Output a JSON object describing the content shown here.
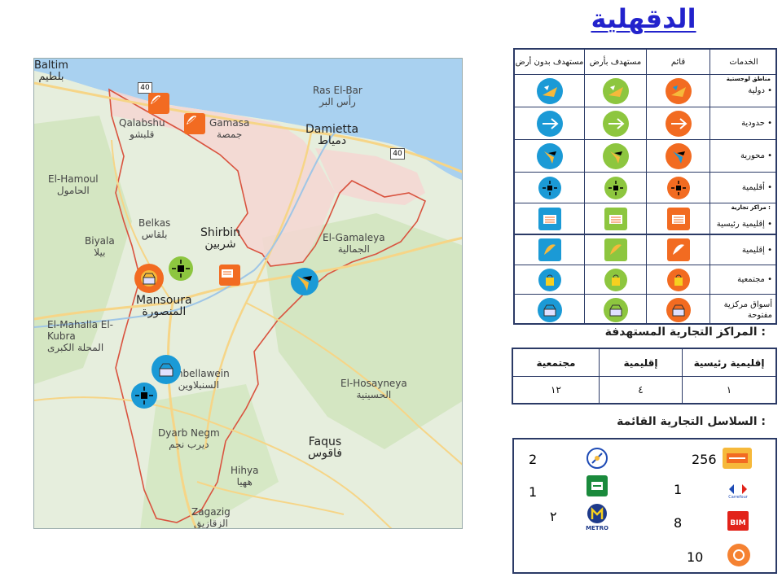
{
  "title": "الدقهلية",
  "map": {
    "labels": [
      {
        "en": "Baltim",
        "ar": "بلطيم"
      },
      {
        "en": "Ras El-Bar",
        "ar": "رأس البر"
      },
      {
        "en": "Qalabshu",
        "ar": "قلبشو"
      },
      {
        "en": "Gamasa",
        "ar": "جمصة"
      },
      {
        "en": "Damietta",
        "ar": "دمياط"
      },
      {
        "en": "El-Hamoul",
        "ar": "الحامول"
      },
      {
        "en": "Belkas",
        "ar": "بلقاس"
      },
      {
        "en": "Shirbin",
        "ar": "شربين"
      },
      {
        "en": "Biyala",
        "ar": "بيلا"
      },
      {
        "en": "El-Gamaleya",
        "ar": "الجمالية"
      },
      {
        "en": "Mansoura",
        "ar": "المنصورة"
      },
      {
        "en": "El-Mahalla El-Kubra",
        "ar": "المحلة الكبرى"
      },
      {
        "en": "Sinbellawein",
        "ar": "السنبلاوين"
      },
      {
        "en": "El-Hosayneya",
        "ar": "الحسينية"
      },
      {
        "en": "Dyarb Negm",
        "ar": "ديرب نجم"
      },
      {
        "en": "Faqus",
        "ar": "فاقوس"
      },
      {
        "en": "Hihya",
        "ar": "ههيا"
      },
      {
        "en": "Zagazig",
        "ar": "الزقازيق"
      }
    ],
    "road_shields": [
      "40",
      "40",
      "40"
    ]
  },
  "legend": {
    "headers": [
      "الخدمات",
      "قائم",
      "مستهدف بأرض",
      "مستهدف بدون أرض"
    ],
    "group_logistics": "مناطق لوجستية",
    "group_commercial": "مراكز تجارية :",
    "rows": [
      {
        "label": "دولية",
        "icon": "international-logistics-icon",
        "color": "#f26b21"
      },
      {
        "label": "حدودية",
        "icon": "border-logistics-icon",
        "color": "#f26b21"
      },
      {
        "label": "محورية",
        "icon": "hub-logistics-icon",
        "color": "#f26b21"
      },
      {
        "label": "أقليمية",
        "icon": "regional-logistics-icon",
        "color": "#f26b21"
      },
      {
        "label": "إقليمية رئيسية",
        "icon": "main-regional-mall-icon",
        "color": "#f26b21"
      },
      {
        "label": "إقليمية",
        "icon": "regional-mall-icon",
        "color": "#f26b21"
      },
      {
        "label": "مجتمعية",
        "icon": "community-mall-icon",
        "color": "#f26b21"
      },
      {
        "label": "أسواق مركزية مفتوحة",
        "icon": "open-market-icon",
        "color": "#f26b21"
      }
    ],
    "column_colors": {
      "existing": "#f26b21",
      "with_land": "#8dc63f",
      "without_land": "#1b9ad6"
    }
  },
  "target_centers": {
    "title": "المراكز التجارية المستهدفة :",
    "headers": [
      "إقليمية رئيسية",
      "إقليمية",
      "مجتمعية"
    ],
    "values": [
      "١",
      "٤",
      "١٢"
    ]
  },
  "chains": {
    "title": "السلاسل التجارية القائمة :",
    "items": [
      {
        "brand": "kazyon-logo",
        "count": "256"
      },
      {
        "brand": "carrefour-logo",
        "count": "1"
      },
      {
        "brand": "bim-logo",
        "count": "8"
      },
      {
        "brand": "oscar-logo",
        "count": "10"
      },
      {
        "brand": "spinneys-logo",
        "count": "2"
      },
      {
        "brand": "seoudi-logo",
        "count": "1"
      },
      {
        "brand": "metro-logo",
        "count": "٢"
      }
    ]
  }
}
